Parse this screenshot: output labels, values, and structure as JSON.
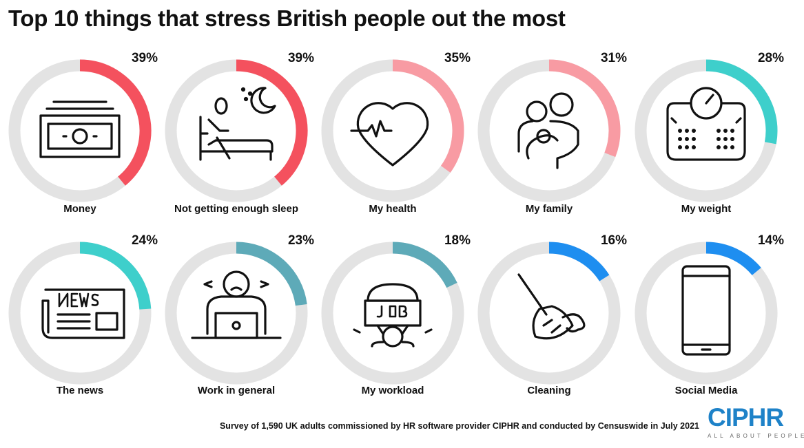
{
  "title": "Top 10 things that stress British people out the most",
  "chart_data": {
    "type": "donut",
    "title": "Top 10 things that stress British people out the most",
    "unit": "%",
    "range": [
      0,
      100
    ],
    "items": [
      {
        "label": "Money",
        "value": 39,
        "pct_label": "39%",
        "color": "#f4515e",
        "icon": "banknote-icon"
      },
      {
        "label": "Not getting enough sleep",
        "value": 39,
        "pct_label": "39%",
        "color": "#f4515e",
        "icon": "bed-moon-icon"
      },
      {
        "label": "My health",
        "value": 35,
        "pct_label": "35%",
        "color": "#f89ba3",
        "icon": "heartbeat-icon"
      },
      {
        "label": "My family",
        "value": 31,
        "pct_label": "31%",
        "color": "#f89ba3",
        "icon": "family-icon"
      },
      {
        "label": "My weight",
        "value": 28,
        "pct_label": "28%",
        "color": "#3ecfcb",
        "icon": "scale-icon"
      },
      {
        "label": "The news",
        "value": 24,
        "pct_label": "24%",
        "color": "#3ecfcb",
        "icon": "newspaper-icon"
      },
      {
        "label": "Work in general",
        "value": 23,
        "pct_label": "23%",
        "color": "#5eaab8",
        "icon": "stressed-worker-icon"
      },
      {
        "label": "My workload",
        "value": 18,
        "pct_label": "18%",
        "color": "#5eaab8",
        "icon": "job-weight-icon"
      },
      {
        "label": "Cleaning",
        "value": 16,
        "pct_label": "16%",
        "color": "#1e8ef0",
        "icon": "mop-icon"
      },
      {
        "label": "Social Media",
        "value": 14,
        "pct_label": "14%",
        "color": "#1e8ef0",
        "icon": "smartphone-icon"
      }
    ],
    "track_color": "#e3e3e3"
  },
  "footer": "Survey of 1,590 UK adults commissioned by HR software provider CIPHR and conducted by Censuswide in July 2021",
  "logo": {
    "name": "CIPHR",
    "tagline": "ALL ABOUT PEOPLE",
    "color": "#1e82c8"
  }
}
